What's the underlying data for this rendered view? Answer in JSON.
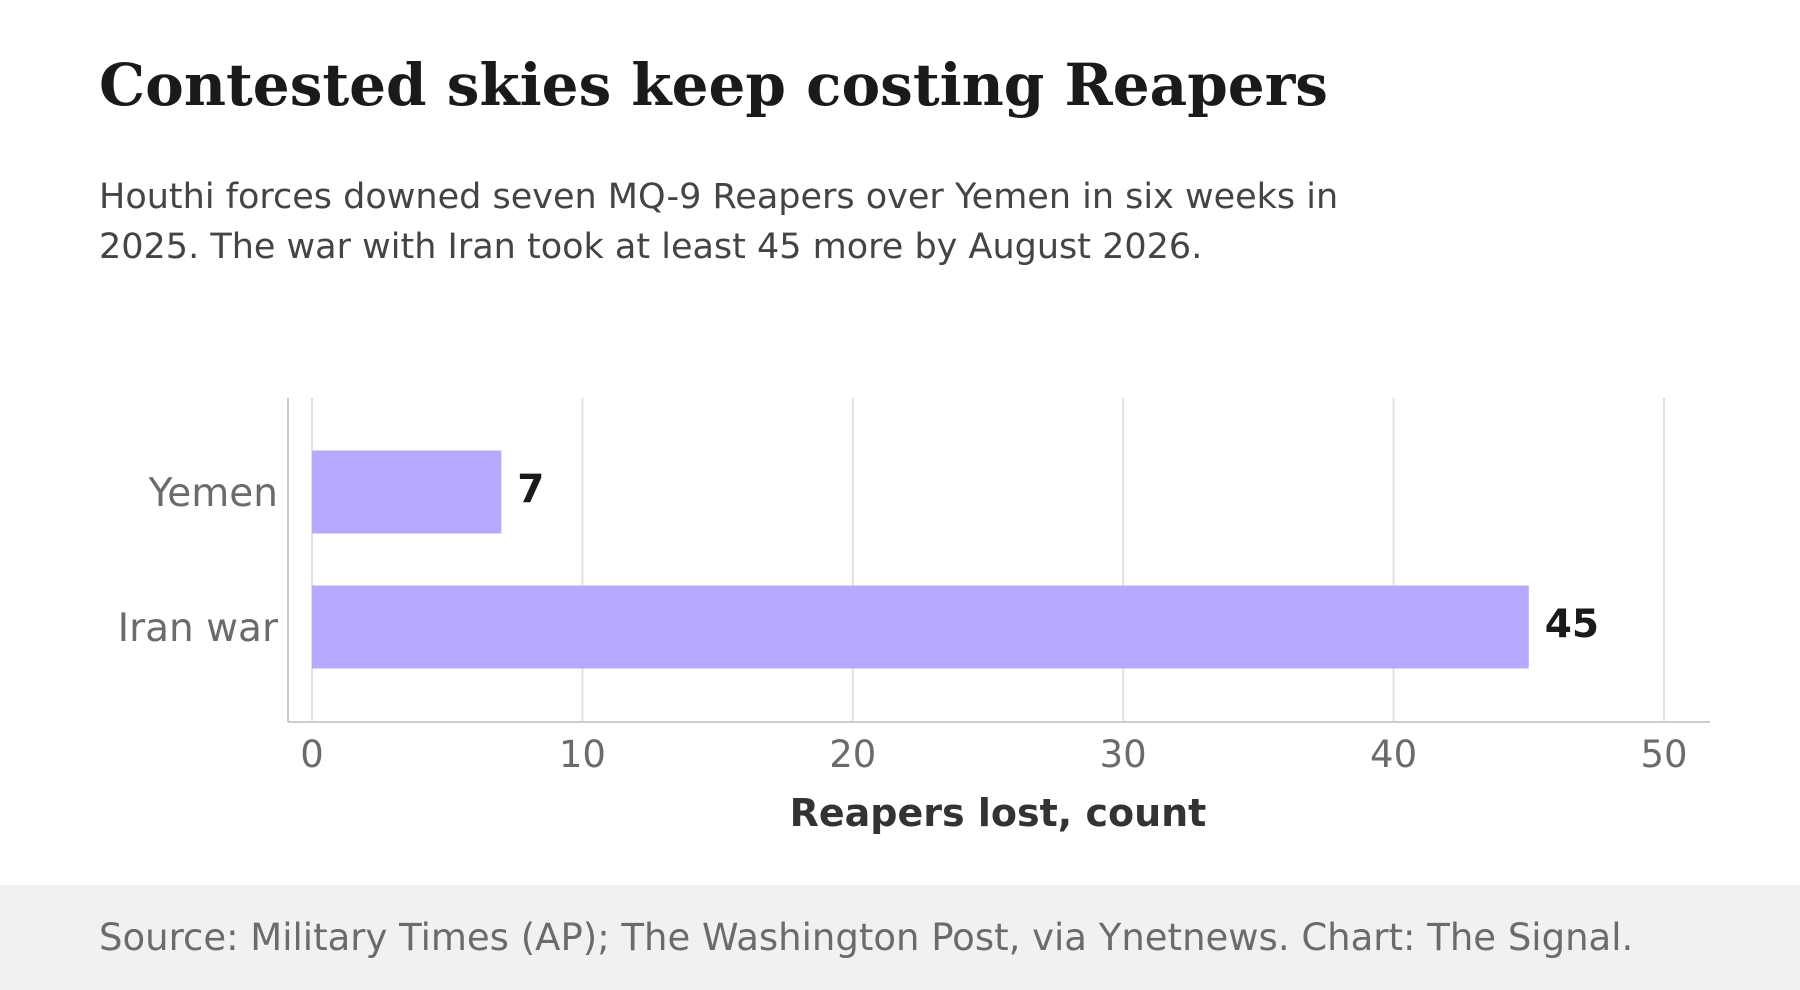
{
  "header": {
    "title": "Contested skies keep costing Reapers",
    "subtitle": "Houthi forces downed seven MQ-9 Reapers over Yemen in six weeks in 2025. The war with Iran took at least 45 more by August 2026."
  },
  "footer": {
    "source": "Source: Military Times (AP); The Washington Post, via Ynetnews. Chart: The Signal."
  },
  "colors": {
    "bar": "#b8a9ff",
    "grid": "#e2e2e2",
    "axis": "#cccccc",
    "footer_bg": "#f2f1f0"
  },
  "chart_data": {
    "type": "bar",
    "orientation": "horizontal",
    "categories": [
      "Yemen",
      "Iran war"
    ],
    "values": [
      7,
      45
    ],
    "value_labels": [
      "7",
      "45"
    ],
    "title": "Contested skies keep costing Reapers",
    "xlabel": "Reapers lost, count",
    "ylabel": "",
    "xlim": [
      0,
      52
    ],
    "xticks": [
      0,
      10,
      20,
      30,
      40,
      50
    ],
    "xtick_labels": [
      "0",
      "10",
      "20",
      "30",
      "40",
      "50"
    ],
    "grid": "vertical",
    "legend": "none"
  }
}
